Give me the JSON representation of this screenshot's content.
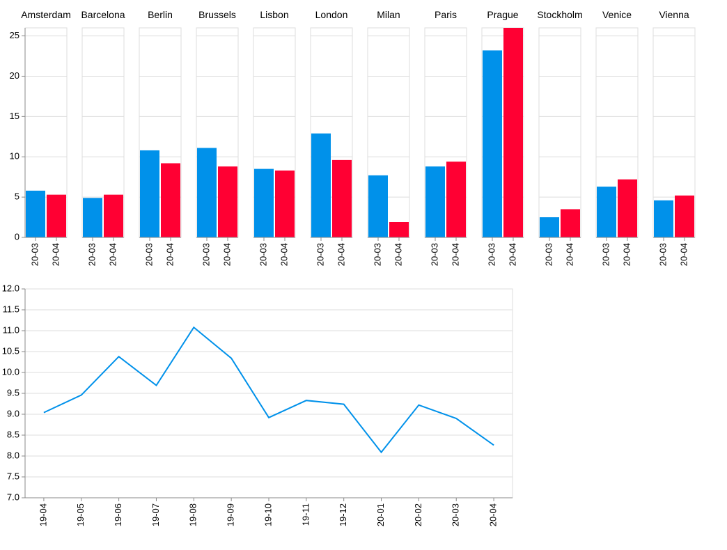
{
  "colors": {
    "series_a": "#0091ea",
    "series_b": "#ff0033"
  },
  "chart_data": [
    {
      "type": "bar",
      "layout": "faceted",
      "title": "",
      "xlabel": "",
      "ylabel": "",
      "ylim": [
        0,
        26
      ],
      "yticks": [
        0,
        5,
        10,
        15,
        20,
        25
      ],
      "grid": true,
      "legend": "none",
      "periods": [
        "20-03",
        "20-04"
      ],
      "facets": [
        {
          "city": "Amsterdam",
          "values": [
            5.8,
            5.3
          ]
        },
        {
          "city": "Barcelona",
          "values": [
            4.9,
            5.3
          ]
        },
        {
          "city": "Berlin",
          "values": [
            10.8,
            9.2
          ]
        },
        {
          "city": "Brussels",
          "values": [
            11.1,
            8.8
          ]
        },
        {
          "city": "Lisbon",
          "values": [
            8.5,
            8.3
          ]
        },
        {
          "city": "London",
          "values": [
            12.9,
            9.6
          ]
        },
        {
          "city": "Milan",
          "values": [
            7.7,
            1.9
          ]
        },
        {
          "city": "Paris",
          "values": [
            8.8,
            9.4
          ]
        },
        {
          "city": "Prague",
          "values": [
            23.2,
            26.0
          ]
        },
        {
          "city": "Stockholm",
          "values": [
            2.5,
            3.5
          ]
        },
        {
          "city": "Venice",
          "values": [
            6.3,
            7.2
          ]
        },
        {
          "city": "Vienna",
          "values": [
            4.6,
            5.2
          ]
        }
      ]
    },
    {
      "type": "line",
      "title": "",
      "xlabel": "",
      "ylabel": "",
      "ylim": [
        7.0,
        12.0
      ],
      "yticks": [
        "7.0",
        "7.5",
        "8.0",
        "8.5",
        "9.0",
        "9.5",
        "10.0",
        "10.5",
        "11.0",
        "11.5",
        "12.0"
      ],
      "grid": true,
      "legend": "none",
      "x": [
        "19-04",
        "19-05",
        "19-06",
        "19-07",
        "19-08",
        "19-09",
        "19-10",
        "19-11",
        "19-12",
        "20-01",
        "20-02",
        "20-03",
        "20-04"
      ],
      "values": [
        9.04,
        9.46,
        10.38,
        9.69,
        11.08,
        10.34,
        8.92,
        9.33,
        9.24,
        8.09,
        9.22,
        8.9,
        8.26
      ]
    }
  ]
}
